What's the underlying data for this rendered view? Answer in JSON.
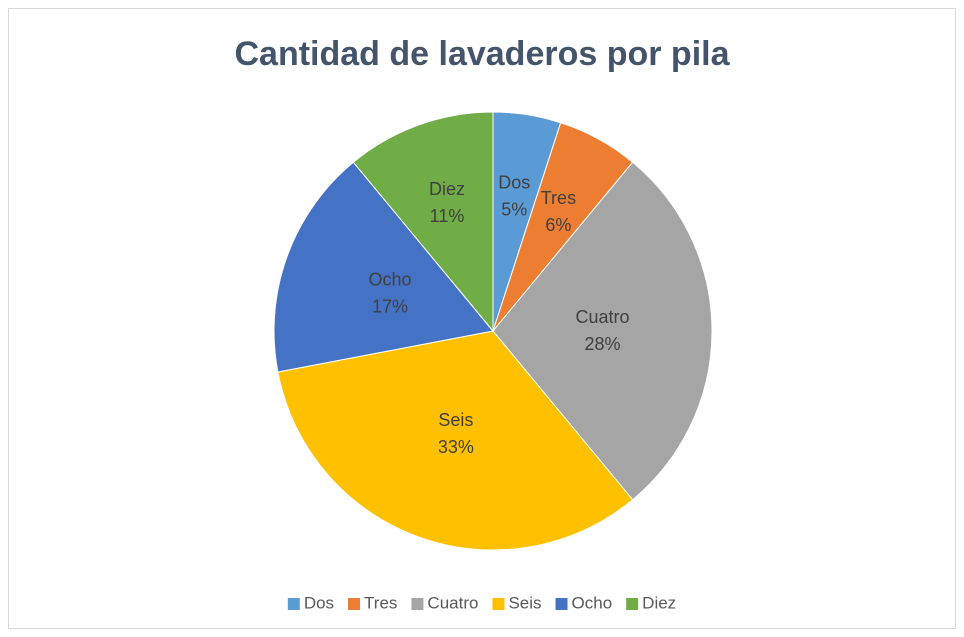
{
  "chart_data": {
    "type": "pie",
    "title": "Cantidad de lavaderos por pila",
    "categories": [
      "Dos",
      "Tres",
      "Cuatro",
      "Seis",
      "Ocho",
      "Diez"
    ],
    "values": [
      5,
      6,
      28,
      33,
      17,
      11
    ],
    "value_labels": [
      "5%",
      "6%",
      "28%",
      "33%",
      "17%",
      "11%"
    ],
    "colors": [
      "#5b9bd5",
      "#ed7d31",
      "#a5a5a5",
      "#ffc000",
      "#4472c4",
      "#70ad47"
    ],
    "legend": "bottom"
  }
}
